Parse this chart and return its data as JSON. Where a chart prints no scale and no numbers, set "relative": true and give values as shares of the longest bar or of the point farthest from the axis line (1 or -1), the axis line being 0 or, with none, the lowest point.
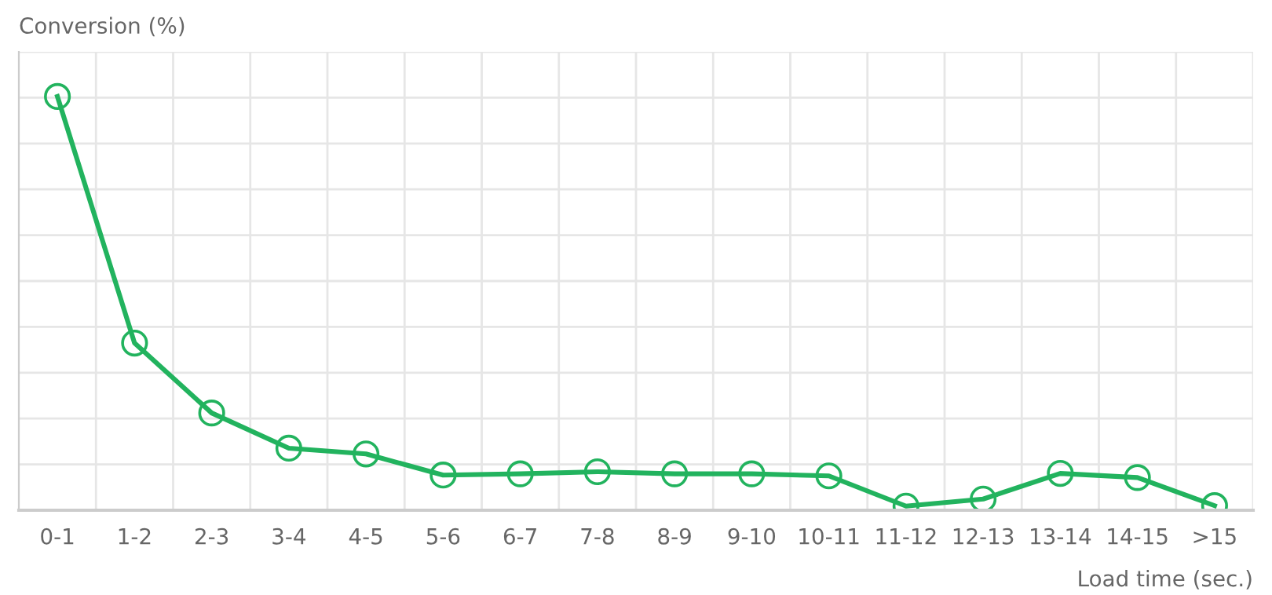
{
  "chart_data": {
    "type": "line",
    "ylabel": "Conversion (%)",
    "xlabel": "Load time (sec.)",
    "categories": [
      "0-1",
      "1-2",
      "2-3",
      "3-4",
      "4-5",
      "5-6",
      "6-7",
      "7-8",
      "8-9",
      "9-10",
      "10-11",
      "11-12",
      "12-13",
      "13-14",
      "14-15",
      ">15"
    ],
    "relative": true,
    "grid": true,
    "marker": "circle",
    "line_style": "solid",
    "legend": false,
    "series": [
      {
        "color": "#22b35e",
        "values": [
          1,
          0.404,
          0.235,
          0.15,
          0.136,
          0.085,
          0.088,
          0.093,
          0.088,
          0.088,
          0.083,
          0.01,
          0.027,
          0.089,
          0.079,
          0.011
        ]
      }
    ]
  }
}
